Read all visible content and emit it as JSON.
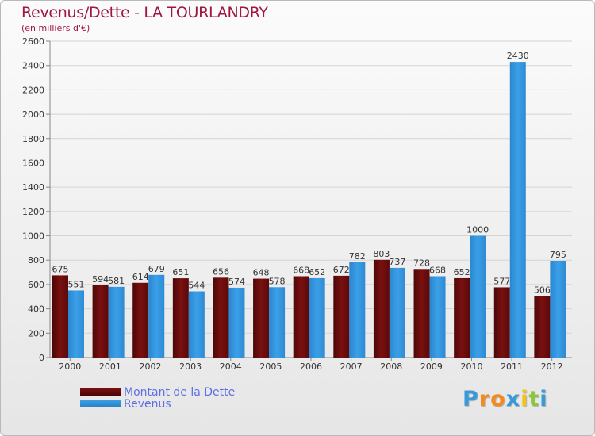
{
  "title": "Revenus/Dette - LA TOURLANDRY",
  "subtitle": "(en milliers d'€)",
  "legend": {
    "debt_label": "Montant de la Dette",
    "revenue_label": "Revenus"
  },
  "logo": {
    "letters": [
      "P",
      "r",
      "o",
      "x",
      "i",
      "t",
      "i"
    ],
    "colors": [
      "#3a9ad9",
      "#f28a1e",
      "#f28a1e",
      "#3a9ad9",
      "#f2c21e",
      "#8cc63f",
      "#3a9ad9"
    ]
  },
  "colors": {
    "debt": "#7a1010",
    "revenue": "#3aa0e8",
    "title": "#a0163f",
    "legend_text": "#5c6ee6"
  },
  "chart_data": {
    "type": "bar",
    "title": "Revenus/Dette - LA TOURLANDRY",
    "ylabel": "(en milliers d'€)",
    "xlabel": "",
    "categories": [
      "2000",
      "2001",
      "2002",
      "2003",
      "2004",
      "2005",
      "2006",
      "2007",
      "2008",
      "2009",
      "2010",
      "2011",
      "2012"
    ],
    "series": [
      {
        "name": "Montant de la Dette",
        "values": [
          675,
          594,
          614,
          651,
          656,
          648,
          668,
          672,
          803,
          728,
          652,
          577,
          506
        ]
      },
      {
        "name": "Revenus",
        "values": [
          551,
          581,
          679,
          544,
          574,
          578,
          652,
          782,
          737,
          668,
          1000,
          2430,
          795
        ]
      }
    ],
    "ylim": [
      0,
      2600
    ],
    "yticks": [
      0,
      200,
      400,
      600,
      800,
      1000,
      1200,
      1400,
      1600,
      1800,
      2000,
      2200,
      2400,
      2600
    ],
    "grid": true,
    "legend_position": "bottom-left"
  }
}
